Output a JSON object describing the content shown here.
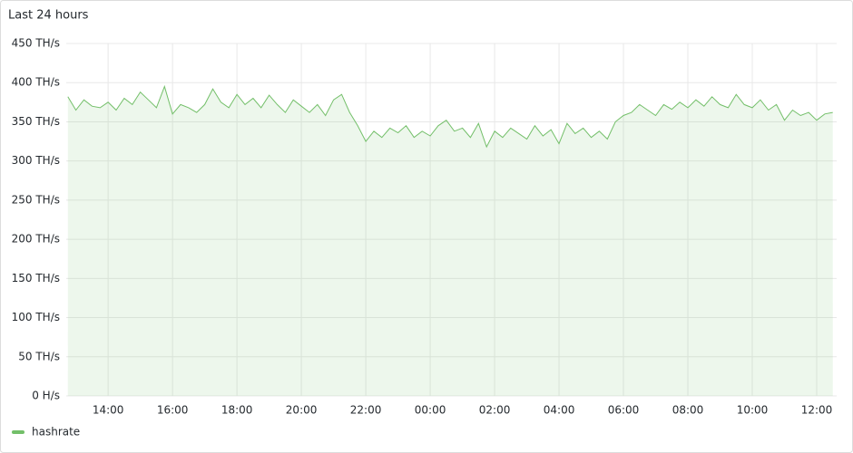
{
  "chart_data": {
    "type": "area",
    "title": "Last 24 hours",
    "x": [
      12.75,
      13,
      13.25,
      13.5,
      13.75,
      14,
      14.25,
      14.5,
      14.75,
      15,
      15.25,
      15.5,
      15.75,
      16,
      16.25,
      16.5,
      16.75,
      17,
      17.25,
      17.5,
      17.75,
      18,
      18.25,
      18.5,
      18.75,
      19,
      19.25,
      19.5,
      19.75,
      20,
      20.25,
      20.5,
      20.75,
      21,
      21.25,
      21.5,
      21.75,
      22,
      22.25,
      22.5,
      22.75,
      23,
      23.25,
      23.5,
      23.75,
      24,
      24.25,
      24.5,
      24.75,
      25,
      25.25,
      25.5,
      25.75,
      26,
      26.25,
      26.5,
      26.75,
      27,
      27.25,
      27.5,
      27.75,
      28,
      28.25,
      28.5,
      28.75,
      29,
      29.25,
      29.5,
      29.75,
      30,
      30.25,
      30.5,
      30.75,
      31,
      31.25,
      31.5,
      31.75,
      32,
      32.25,
      32.5,
      32.75,
      33,
      33.25,
      33.5,
      33.75,
      34,
      34.25,
      34.5,
      34.75,
      35,
      35.25,
      35.5,
      35.75,
      36,
      36.25,
      36.5
    ],
    "series": [
      {
        "name": "hashrate",
        "color": "#73bf69",
        "values": [
          382,
          365,
          378,
          370,
          368,
          375,
          365,
          380,
          372,
          388,
          378,
          368,
          395,
          360,
          372,
          368,
          362,
          372,
          392,
          375,
          368,
          385,
          372,
          380,
          368,
          384,
          372,
          362,
          378,
          370,
          362,
          372,
          358,
          378,
          385,
          362,
          345,
          325,
          338,
          330,
          342,
          336,
          345,
          330,
          338,
          332,
          345,
          352,
          338,
          342,
          330,
          348,
          318,
          338,
          330,
          342,
          335,
          328,
          345,
          332,
          340,
          322,
          348,
          335,
          342,
          330,
          338,
          328,
          350,
          358,
          362,
          372,
          365,
          358,
          372,
          366,
          375,
          368,
          378,
          370,
          382,
          372,
          368,
          385,
          372,
          368,
          378,
          365,
          372,
          352,
          365,
          358,
          362,
          352,
          360,
          362
        ]
      }
    ],
    "xlim": [
      12.7,
      36.62
    ],
    "xticks": [
      {
        "value": 14,
        "label": "14:00"
      },
      {
        "value": 16,
        "label": "16:00"
      },
      {
        "value": 18,
        "label": "18:00"
      },
      {
        "value": 20,
        "label": "20:00"
      },
      {
        "value": 22,
        "label": "22:00"
      },
      {
        "value": 24,
        "label": "00:00"
      },
      {
        "value": 26,
        "label": "02:00"
      },
      {
        "value": 28,
        "label": "04:00"
      },
      {
        "value": 30,
        "label": "06:00"
      },
      {
        "value": 32,
        "label": "08:00"
      },
      {
        "value": 34,
        "label": "10:00"
      },
      {
        "value": 36,
        "label": "12:00"
      }
    ],
    "ylim": [
      0,
      450
    ],
    "yticks": [
      {
        "value": 0,
        "label": "0 H/s"
      },
      {
        "value": 50,
        "label": "50 TH/s"
      },
      {
        "value": 100,
        "label": "100 TH/s"
      },
      {
        "value": 150,
        "label": "150 TH/s"
      },
      {
        "value": 200,
        "label": "200 TH/s"
      },
      {
        "value": 250,
        "label": "250 TH/s"
      },
      {
        "value": 300,
        "label": "300 TH/s"
      },
      {
        "value": 350,
        "label": "350 TH/s"
      },
      {
        "value": 400,
        "label": "400 TH/s"
      },
      {
        "value": 450,
        "label": "450 TH/s"
      }
    ],
    "grid": true
  }
}
